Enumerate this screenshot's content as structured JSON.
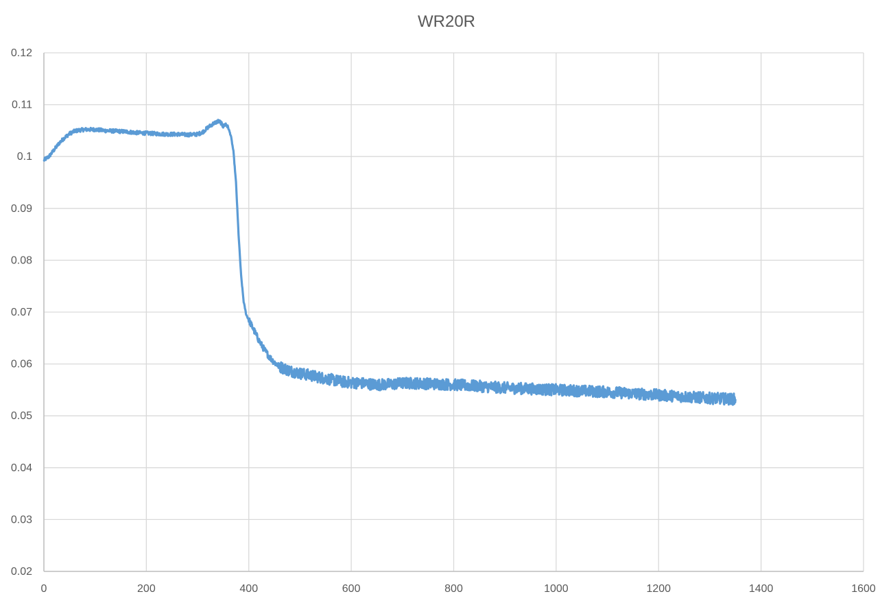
{
  "chart_data": {
    "type": "line",
    "title": "WR20R",
    "xlabel": "",
    "ylabel": "",
    "xlim": [
      0,
      1600
    ],
    "ylim": [
      0.02,
      0.12
    ],
    "x_ticks": [
      0,
      200,
      400,
      600,
      800,
      1000,
      1200,
      1400,
      1600
    ],
    "y_ticks": [
      0.02,
      0.03,
      0.04,
      0.05,
      0.06,
      0.07,
      0.08,
      0.09,
      0.1,
      0.11,
      0.12
    ],
    "x_tick_labels": [
      "0",
      "200",
      "400",
      "600",
      "800",
      "1000",
      "1200",
      "1400",
      "1600"
    ],
    "y_tick_labels": [
      "0.02",
      "0.03",
      "0.04",
      "0.05",
      "0.06",
      "0.07",
      "0.08",
      "0.09",
      "0.1",
      "0.11",
      "0.12"
    ],
    "grid": true,
    "legend": "none",
    "series": [
      {
        "color": "#5B9BD5",
        "x": [
          0,
          10,
          20,
          30,
          40,
          50,
          60,
          70,
          80,
          100,
          120,
          140,
          160,
          180,
          200,
          220,
          240,
          260,
          280,
          300,
          310,
          320,
          330,
          340,
          345,
          350,
          355,
          360,
          365,
          370,
          375,
          380,
          385,
          390,
          395,
          400,
          410,
          420,
          430,
          440,
          450,
          460,
          480,
          500,
          520,
          540,
          560,
          580,
          600,
          620,
          650,
          680,
          700,
          720,
          750,
          780,
          800,
          850,
          900,
          950,
          1000,
          1050,
          1100,
          1150,
          1200,
          1250,
          1300,
          1350
        ],
        "y": [
          0.0993,
          0.1,
          0.1013,
          0.1026,
          0.1036,
          0.1044,
          0.1049,
          0.1051,
          0.1052,
          0.1052,
          0.105,
          0.1049,
          0.1048,
          0.1046,
          0.1045,
          0.1044,
          0.1043,
          0.1043,
          0.1042,
          0.1043,
          0.1047,
          0.1056,
          0.1063,
          0.1068,
          0.1066,
          0.1058,
          0.1063,
          0.1055,
          0.104,
          0.101,
          0.095,
          0.085,
          0.077,
          0.072,
          0.0695,
          0.0685,
          0.0665,
          0.0645,
          0.0628,
          0.0614,
          0.0603,
          0.0595,
          0.0587,
          0.0582,
          0.0578,
          0.0574,
          0.057,
          0.0566,
          0.0564,
          0.0563,
          0.056,
          0.0561,
          0.0563,
          0.0563,
          0.0562,
          0.0561,
          0.056,
          0.0557,
          0.0554,
          0.0552,
          0.055,
          0.0548,
          0.0546,
          0.0543,
          0.054,
          0.0537,
          0.0534,
          0.0532
        ]
      }
    ]
  }
}
